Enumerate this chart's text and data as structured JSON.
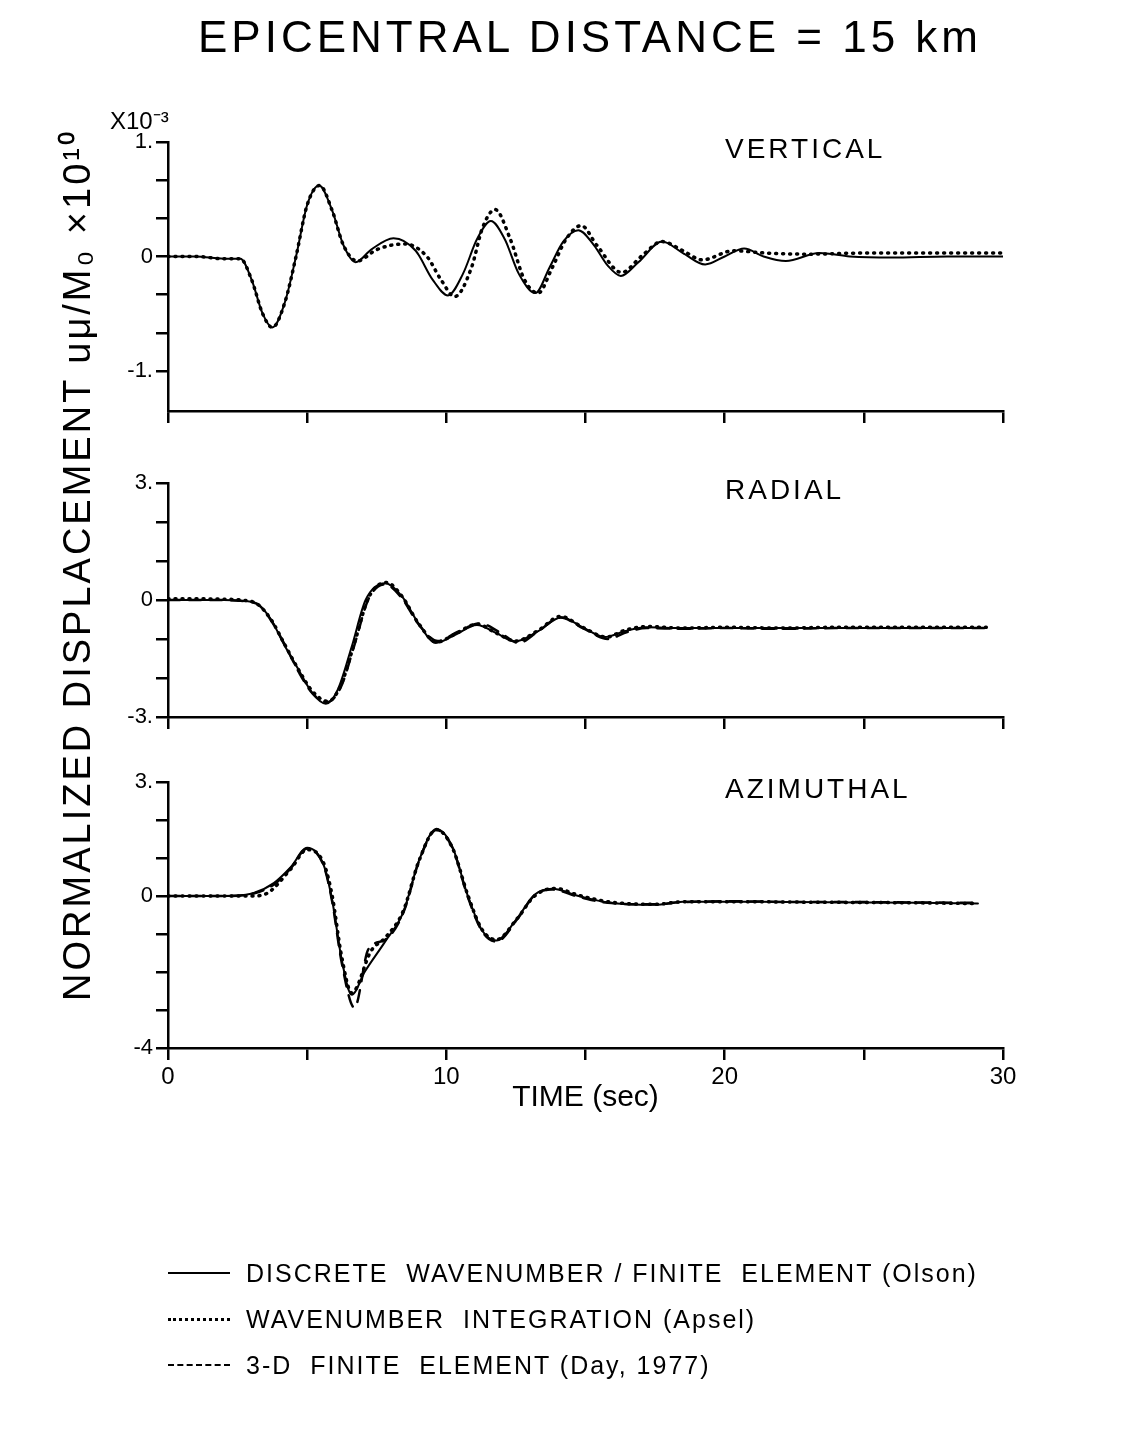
{
  "chart_data": [
    {
      "type": "line",
      "title": "EPICENTRAL DISTANCE = 15 km",
      "subtitle": "VERTICAL",
      "annotations": [
        "X10⁻³"
      ],
      "xlim": [
        0,
        30
      ],
      "ylim": [
        -1.35,
        1
      ],
      "xticks": [
        0,
        {
          "value": 5,
          "label": null
        },
        10,
        {
          "value": 15,
          "label": null
        },
        20,
        {
          "value": 25,
          "label": null
        },
        30
      ],
      "yticks": [
        {
          "value": -1,
          "label": "-1."
        },
        {
          "value": -0.667,
          "label": null
        },
        {
          "value": -0.333,
          "label": null
        },
        {
          "value": 0,
          "label": "0"
        },
        {
          "value": 0.333,
          "label": null
        },
        {
          "value": 0.667,
          "label": null
        },
        {
          "value": 1,
          "label": "1."
        }
      ],
      "tick_labels": "y",
      "series": [
        {
          "color": "#000000",
          "line_style": "solid",
          "x": [
            0,
            1,
            2,
            2.6,
            3,
            3.4,
            3.75,
            4.2,
            4.6,
            5,
            5.43,
            5.9,
            6.3,
            6.74,
            7.3,
            8.1,
            8.9,
            9.5,
            10.06,
            10.6,
            11.1,
            11.6,
            12.1,
            12.6,
            13.2,
            13.7,
            14.2,
            14.74,
            15.3,
            15.8,
            16.27,
            16.9,
            17.75,
            18.5,
            19.3,
            20,
            20.7,
            21.4,
            22.2,
            23.4,
            24.5,
            26,
            28,
            30
          ],
          "values": [
            0,
            0,
            -0.02,
            -0.02,
            -0.2,
            -0.5,
            -0.62,
            -0.4,
            0,
            0.45,
            0.62,
            0.4,
            0.1,
            -0.05,
            0.06,
            0.16,
            0.05,
            -0.2,
            -0.34,
            -0.15,
            0.15,
            0.31,
            0.15,
            -0.15,
            -0.32,
            -0.1,
            0.13,
            0.23,
            0.1,
            -0.08,
            -0.17,
            -0.05,
            0.13,
            0.03,
            -0.07,
            0,
            0.07,
            0,
            -0.04,
            0.03,
            0,
            -0.01,
            0,
            0
          ]
        },
        {
          "color": "#000000",
          "line_style": "dotted",
          "x": [
            0,
            1,
            2,
            2.6,
            3,
            3.4,
            3.75,
            4.2,
            4.6,
            5,
            5.45,
            5.9,
            6.3,
            6.8,
            7.5,
            8.5,
            9.3,
            9.8,
            10.3,
            10.9,
            11.3,
            11.75,
            12.3,
            12.8,
            13.3,
            13.8,
            14.3,
            14.85,
            15.4,
            16.3,
            17,
            17.75,
            18.5,
            19.2,
            20.3,
            21.5,
            23,
            25,
            27,
            30
          ],
          "values": [
            0,
            0,
            -0.02,
            -0.02,
            -0.2,
            -0.5,
            -0.62,
            -0.4,
            0,
            0.45,
            0.62,
            0.4,
            0.1,
            -0.04,
            0.06,
            0.11,
            0,
            -0.2,
            -0.35,
            -0.1,
            0.25,
            0.41,
            0.15,
            -0.2,
            -0.32,
            -0.1,
            0.15,
            0.27,
            0.1,
            -0.14,
            0,
            0.13,
            0.05,
            -0.03,
            0.05,
            0.03,
            0.02,
            0.03,
            0.03,
            0.03
          ]
        }
      ]
    },
    {
      "type": "line",
      "subtitle": "RADIAL",
      "ylabel": "NORMALIZED   DISPLACEMENT   uμ/M₀ ×10¹⁰",
      "xlim": [
        0,
        30
      ],
      "ylim": [
        -3,
        3
      ],
      "xticks": [
        0,
        {
          "value": 5,
          "label": null
        },
        10,
        {
          "value": 15,
          "label": null
        },
        20,
        {
          "value": 25,
          "label": null
        },
        30
      ],
      "yticks": [
        {
          "value": -3,
          "label": "-3."
        },
        {
          "value": -2,
          "label": null
        },
        {
          "value": -1,
          "label": null
        },
        {
          "value": 0,
          "label": "0"
        },
        {
          "value": 1,
          "label": null
        },
        {
          "value": 2,
          "label": null
        },
        {
          "value": 3,
          "label": "3."
        }
      ],
      "tick_labels": "y",
      "series": [
        {
          "color": "#000000",
          "line_style": "solid",
          "x": [
            0,
            1,
            2,
            2.6,
            3.2,
            3.7,
            4.16,
            4.7,
            5.2,
            5.67,
            6.1,
            6.6,
            7.1,
            7.8,
            8.4,
            9,
            9.62,
            10.3,
            11.1,
            11.8,
            12.46,
            13.3,
            14.14,
            14.9,
            15.7,
            16.4,
            17.2,
            18.5,
            20,
            22,
            24,
            26,
            28,
            29.4
          ],
          "values": [
            0,
            0,
            0,
            -0.02,
            -0.1,
            -0.5,
            -1.13,
            -1.8,
            -2.4,
            -2.66,
            -2.3,
            -1.2,
            0,
            0.43,
            0.1,
            -0.6,
            -1.1,
            -0.9,
            -0.64,
            -0.85,
            -1.06,
            -0.8,
            -0.44,
            -0.7,
            -0.95,
            -0.8,
            -0.7,
            -0.72,
            -0.72,
            -0.72,
            -0.72,
            -0.72,
            -0.72,
            -0.72
          ]
        },
        {
          "color": "#000000",
          "line_style": "dotted",
          "x": [
            0,
            1,
            2,
            2.6,
            3.2,
            3.7,
            4.2,
            4.7,
            5.2,
            5.75,
            6.2,
            6.7,
            7.2,
            7.85,
            8.4,
            9,
            9.65,
            10.3,
            11.1,
            11.8,
            12.5,
            13.3,
            14.1,
            14.9,
            15.75,
            16.4,
            17.2,
            18.5,
            20,
            22,
            24,
            26,
            28,
            29.4
          ],
          "values": [
            0.03,
            0.03,
            0.02,
            0,
            -0.1,
            -0.5,
            -1.15,
            -1.8,
            -2.35,
            -2.6,
            -2.2,
            -1.1,
            0.05,
            0.45,
            0.1,
            -0.6,
            -1.08,
            -0.88,
            -0.62,
            -0.85,
            -1.05,
            -0.78,
            -0.42,
            -0.7,
            -0.95,
            -0.78,
            -0.68,
            -0.72,
            -0.7,
            -0.72,
            -0.7,
            -0.7,
            -0.7,
            -0.7
          ]
        },
        {
          "color": "#000000",
          "line_style": "dashed",
          "x": [
            0,
            1,
            2,
            2.6,
            3.2,
            3.7,
            4.2,
            4.7,
            5.2,
            5.7,
            6.2,
            6.7,
            7.2,
            7.8,
            8.4,
            9,
            9.7,
            10.4,
            11.2,
            11.9,
            12.6,
            13.3,
            14.1,
            14.9,
            15.8,
            16.5,
            17.2,
            18.5,
            20,
            22,
            24,
            26,
            28,
            29.4
          ],
          "values": [
            0,
            0,
            0,
            -0.02,
            -0.1,
            -0.52,
            -1.15,
            -1.85,
            -2.4,
            -2.62,
            -2.25,
            -1.15,
            0.02,
            0.4,
            0.05,
            -0.62,
            -1.05,
            -0.82,
            -0.6,
            -0.82,
            -1.1,
            -0.8,
            -0.45,
            -0.72,
            -1,
            -0.82,
            -0.72,
            -0.74,
            -0.72,
            -0.74,
            -0.72,
            -0.72,
            -0.72,
            -0.72
          ]
        }
      ]
    },
    {
      "type": "line",
      "subtitle": "AZIMUTHAL",
      "xlabel": "TIME (sec)",
      "legend": "bottom",
      "xlim": [
        0,
        30
      ],
      "ylim": [
        -4,
        3
      ],
      "xticks": [
        0,
        {
          "value": 5,
          "label": null
        },
        10,
        {
          "value": 15,
          "label": null
        },
        20,
        {
          "value": 25,
          "label": null
        },
        30
      ],
      "yticks": [
        {
          "value": -4,
          "label": "-4"
        },
        {
          "value": -3,
          "label": null
        },
        {
          "value": -2,
          "label": null
        },
        {
          "value": -1,
          "label": null
        },
        {
          "value": 0,
          "label": "0"
        },
        {
          "value": 1,
          "label": null
        },
        {
          "value": 2,
          "label": null
        },
        {
          "value": 3,
          "label": "3."
        }
      ],
      "series": [
        {
          "name": "DISCRETE  WAVENUMBER / FINITE  ELEMENT (Olson)",
          "color": "#000000",
          "line_style": "solid",
          "x": [
            0,
            1,
            2,
            2.98,
            3.8,
            4.4,
            5,
            5.6,
            5.9,
            6.24,
            6.6,
            7.08,
            7.8,
            8.45,
            9.03,
            9.64,
            10.23,
            10.76,
            11.28,
            11.8,
            12.54,
            13.17,
            13.8,
            14.75,
            15.8,
            17.5,
            18.5,
            20.6,
            22.5,
            24.8,
            27,
            29.1
          ],
          "values": [
            0,
            0,
            0,
            0.06,
            0.34,
            0.75,
            1.27,
            0.8,
            -0.12,
            -1.67,
            -2.6,
            -1.98,
            -1.2,
            -0.43,
            0.96,
            1.76,
            1.27,
            0.03,
            -0.9,
            -1.17,
            -0.59,
            0.03,
            0.19,
            0,
            -0.17,
            -0.23,
            -0.15,
            -0.15,
            -0.16,
            -0.17,
            -0.18,
            -0.2
          ]
        },
        {
          "name": "WAVENUMBER  INTEGRATION (Apsel)",
          "color": "#000000",
          "line_style": "dotted",
          "x": [
            0,
            1,
            2,
            2.98,
            3.5,
            4.4,
            5,
            5.6,
            5.9,
            6.24,
            6.6,
            7.3,
            7.8,
            8.45,
            9.03,
            9.64,
            10.23,
            10.76,
            11.28,
            11.8,
            12.54,
            13.17,
            13.9,
            14.75,
            15.8,
            17.5,
            18.5,
            20.6,
            22.5,
            24.8,
            27,
            29.1
          ],
          "values": [
            0,
            0,
            0,
            0,
            0.05,
            0.7,
            1.22,
            0.85,
            0,
            -1.6,
            -2.55,
            -1.44,
            -1.1,
            -0.4,
            0.95,
            1.75,
            1.25,
            0.05,
            -0.88,
            -1.15,
            -0.6,
            0,
            0.2,
            0.02,
            -0.15,
            -0.22,
            -0.15,
            -0.15,
            -0.16,
            -0.17,
            -0.18,
            -0.2
          ]
        },
        {
          "name": "3-D  FINITE  ELEMENT (Day, 1977)",
          "color": "#000000",
          "line_style": "dashed",
          "x": [
            0,
            1,
            2,
            2.98,
            3.8,
            4.4,
            5,
            5.6,
            5.9,
            6.24,
            6.7,
            7.2,
            7.8,
            8.45,
            9.03,
            9.64,
            10.23,
            10.76,
            11.28,
            11.8,
            12.54,
            13.17,
            13.8,
            14.75,
            15.8,
            17.5,
            18.5,
            20.6,
            22.5,
            24.8,
            27,
            29.1
          ],
          "values": [
            0,
            0,
            0,
            0.05,
            0.3,
            0.72,
            1.25,
            0.78,
            -0.15,
            -1.75,
            -2.94,
            -1.4,
            -1.15,
            -0.45,
            0.94,
            1.74,
            1.25,
            0,
            -0.92,
            -1.2,
            -0.62,
            0.02,
            0.17,
            -0.02,
            -0.18,
            -0.22,
            -0.16,
            -0.14,
            -0.16,
            -0.16,
            -0.17,
            -0.18
          ]
        }
      ]
    }
  ]
}
